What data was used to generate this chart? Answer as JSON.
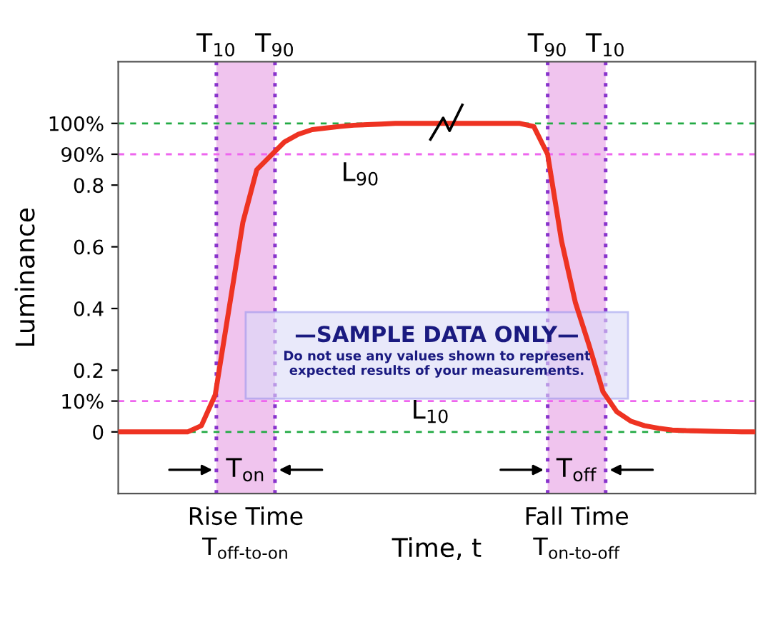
{
  "chart_data": {
    "type": "line",
    "xlabel": "Time, t",
    "ylabel": "Luminance",
    "categories": [
      null,
      null,
      null,
      null,
      null,
      null,
      null,
      null,
      null,
      null,
      null,
      null,
      null,
      null,
      null,
      null,
      null,
      null,
      null,
      null,
      null,
      null,
      null,
      null,
      null,
      null,
      null,
      null,
      null,
      null,
      null,
      null,
      null,
      null,
      null,
      null,
      null,
      null,
      null,
      null,
      null,
      null,
      null,
      null,
      null,
      null,
      null
    ],
    "series": [
      {
        "color": "#ee3322",
        "values": [
          0,
          0,
          0,
          0,
          0,
          0,
          0.02,
          0.12,
          0.4,
          0.68,
          0.85,
          0.895,
          0.94,
          0.965,
          0.98,
          0.985,
          0.99,
          0.994,
          0.996,
          0.998,
          1.0,
          1.0,
          1.0,
          1.0,
          1.0,
          1.0,
          1.0,
          1.0,
          1.0,
          1.0,
          0.99,
          0.9,
          0.62,
          0.42,
          0.28,
          0.13,
          0.065,
          0.035,
          0.02,
          0.012,
          0.006,
          0.004,
          0.003,
          0.002,
          0.001,
          0,
          0
        ]
      }
    ],
    "ylim": [
      -0.2,
      1.2
    ],
    "yticks": [
      {
        "value": 0,
        "label": "0"
      },
      {
        "value": 0.1,
        "label": "10%"
      },
      {
        "value": 0.2,
        "label": "0.2"
      },
      {
        "value": 0.4,
        "label": "0.4"
      },
      {
        "value": 0.6,
        "label": "0.6"
      },
      {
        "value": 0.8,
        "label": "0.8"
      },
      {
        "value": 0.9,
        "label": "90%"
      },
      {
        "value": 1.0,
        "label": "100%"
      }
    ],
    "tick_labels": "y",
    "ref_lines": [
      {
        "axis": "y",
        "value": 1.0,
        "label": null,
        "color": "#22aa44",
        "line_style": "dashed"
      },
      {
        "axis": "y",
        "value": 0.9,
        "label": null,
        "color": "#ee66ee",
        "line_style": "dashed"
      },
      {
        "axis": "y",
        "value": 0.1,
        "label": null,
        "color": "#ee66ee",
        "line_style": "dashed"
      },
      {
        "axis": "y",
        "value": 0,
        "label": null,
        "color": "#22aa44",
        "line_style": "dashed"
      }
    ],
    "annotations": [
      "T$_{10}$",
      "T$_{90}$",
      "T$_{90}$",
      "T$_{10}$",
      "Rise Time",
      "T$_{off-to-on}$",
      "Fall Time",
      "T$_{on-to-off}$",
      "T$_{on}$",
      "T$_{off}$",
      "L$_{90}$",
      "L$_{10}$",
      "—SAMPLE DATA ONLY—",
      "Do not use any values shown to represent\nexpected results of your measurements."
    ]
  }
}
